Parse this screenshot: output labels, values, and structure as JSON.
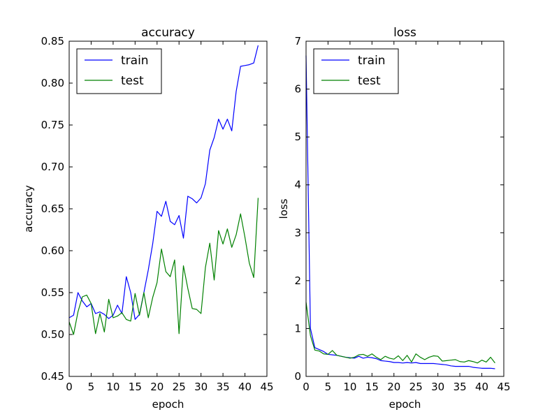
{
  "chart_data": [
    {
      "type": "line",
      "title": "accuracy",
      "xlabel": "epoch",
      "ylabel": "accuracy",
      "xlim": [
        0,
        45
      ],
      "ylim": [
        0.45,
        0.85
      ],
      "xticks": [
        "0",
        "5",
        "10",
        "15",
        "20",
        "25",
        "30",
        "35",
        "40",
        "45"
      ],
      "xtick_values": [
        0,
        5,
        10,
        15,
        20,
        25,
        30,
        35,
        40,
        45
      ],
      "yticks": [
        "0.45",
        "0.50",
        "0.55",
        "0.60",
        "0.65",
        "0.70",
        "0.75",
        "0.80",
        "0.85"
      ],
      "ytick_values": [
        0.45,
        0.5,
        0.55,
        0.6,
        0.65,
        0.7,
        0.75,
        0.8,
        0.85
      ],
      "legend_position": "top-left",
      "x": [
        0,
        1,
        2,
        3,
        4,
        5,
        6,
        7,
        8,
        9,
        10,
        11,
        12,
        13,
        14,
        15,
        16,
        17,
        18,
        19,
        20,
        21,
        22,
        23,
        24,
        25,
        26,
        27,
        28,
        29,
        30,
        31,
        32,
        33,
        34,
        35,
        36,
        37,
        38,
        39,
        40,
        41,
        42,
        43
      ],
      "series": [
        {
          "name": "train",
          "color": "#0000ff",
          "values": [
            0.52,
            0.523,
            0.55,
            0.54,
            0.533,
            0.537,
            0.525,
            0.527,
            0.524,
            0.519,
            0.523,
            0.535,
            0.525,
            0.569,
            0.55,
            0.518,
            0.524,
            0.55,
            0.577,
            0.608,
            0.647,
            0.641,
            0.659,
            0.635,
            0.631,
            0.642,
            0.615,
            0.665,
            0.662,
            0.657,
            0.663,
            0.68,
            0.72,
            0.735,
            0.757,
            0.745,
            0.757,
            0.743,
            0.79,
            0.82,
            0.821,
            0.822,
            0.824,
            0.845
          ]
        },
        {
          "name": "test",
          "color": "#008000",
          "values": [
            0.515,
            0.5,
            0.527,
            0.545,
            0.547,
            0.537,
            0.501,
            0.525,
            0.503,
            0.542,
            0.52,
            0.522,
            0.526,
            0.518,
            0.516,
            0.549,
            0.523,
            0.55,
            0.52,
            0.544,
            0.562,
            0.602,
            0.575,
            0.569,
            0.589,
            0.501,
            0.582,
            0.555,
            0.531,
            0.53,
            0.525,
            0.58,
            0.609,
            0.565,
            0.624,
            0.608,
            0.626,
            0.604,
            0.619,
            0.644,
            0.616,
            0.585,
            0.568,
            0.663
          ]
        }
      ]
    },
    {
      "type": "line",
      "title": "loss",
      "xlabel": "epoch",
      "ylabel": "loss",
      "xlim": [
        0,
        45
      ],
      "ylim": [
        0,
        7
      ],
      "xticks": [
        "0",
        "5",
        "10",
        "15",
        "20",
        "25",
        "30",
        "35",
        "40",
        "45"
      ],
      "xtick_values": [
        0,
        5,
        10,
        15,
        20,
        25,
        30,
        35,
        40,
        45
      ],
      "yticks": [
        "0",
        "1",
        "2",
        "3",
        "4",
        "5",
        "6",
        "7"
      ],
      "ytick_values": [
        0,
        1,
        2,
        3,
        4,
        5,
        6,
        7
      ],
      "legend_position": "top-left",
      "x": [
        0,
        1,
        2,
        3,
        4,
        5,
        6,
        7,
        8,
        9,
        10,
        11,
        12,
        13,
        14,
        15,
        16,
        17,
        18,
        19,
        20,
        21,
        22,
        23,
        24,
        25,
        26,
        27,
        28,
        29,
        30,
        31,
        32,
        33,
        34,
        35,
        36,
        37,
        38,
        39,
        40,
        41,
        42,
        43
      ],
      "series": [
        {
          "name": "train",
          "color": "#0000ff",
          "values": [
            6.7,
            1.0,
            0.6,
            0.56,
            0.52,
            0.46,
            0.45,
            0.44,
            0.42,
            0.4,
            0.39,
            0.38,
            0.42,
            0.38,
            0.4,
            0.39,
            0.37,
            0.33,
            0.32,
            0.31,
            0.29,
            0.29,
            0.28,
            0.29,
            0.28,
            0.29,
            0.27,
            0.27,
            0.27,
            0.27,
            0.26,
            0.25,
            0.24,
            0.22,
            0.21,
            0.21,
            0.21,
            0.21,
            0.19,
            0.18,
            0.17,
            0.17,
            0.17,
            0.16
          ]
        },
        {
          "name": "test",
          "color": "#008000",
          "values": [
            1.55,
            0.85,
            0.55,
            0.53,
            0.47,
            0.46,
            0.54,
            0.44,
            0.42,
            0.4,
            0.38,
            0.4,
            0.45,
            0.46,
            0.42,
            0.47,
            0.4,
            0.35,
            0.42,
            0.38,
            0.36,
            0.43,
            0.33,
            0.44,
            0.3,
            0.47,
            0.4,
            0.35,
            0.4,
            0.43,
            0.42,
            0.32,
            0.33,
            0.34,
            0.35,
            0.31,
            0.3,
            0.33,
            0.31,
            0.28,
            0.34,
            0.3,
            0.4,
            0.28
          ]
        }
      ]
    }
  ]
}
